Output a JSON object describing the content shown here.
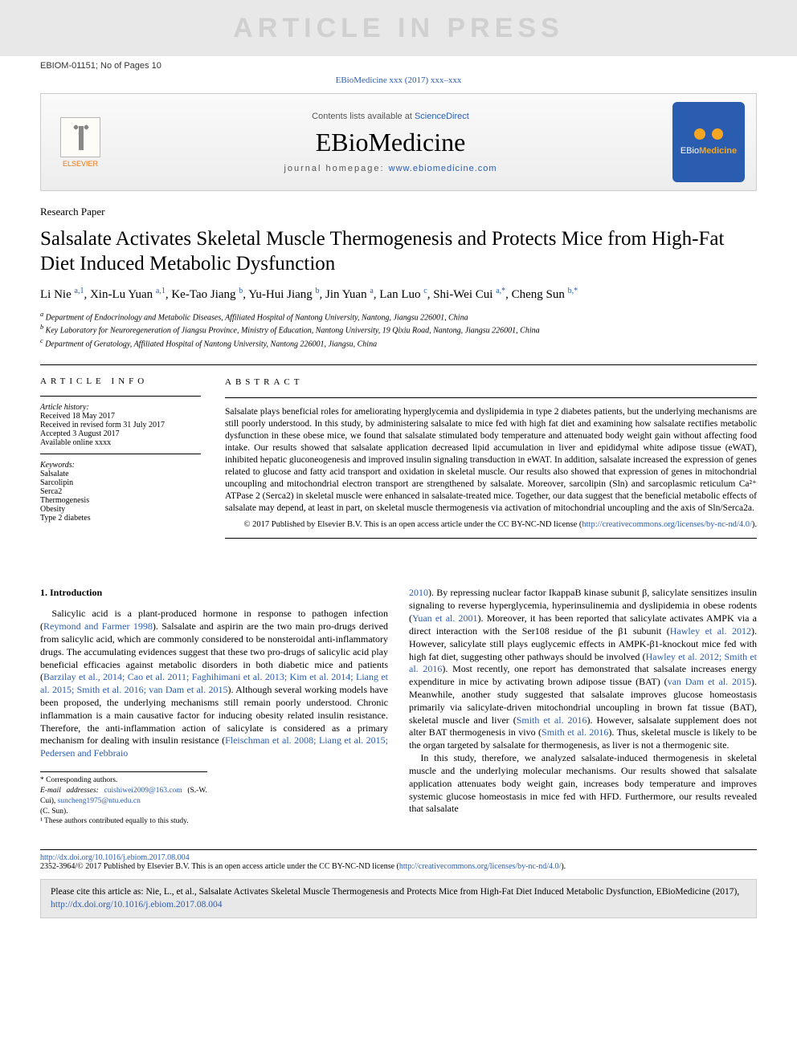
{
  "watermark": "ARTICLE IN PRESS",
  "article_id_line": "EBIOM-01151; No of Pages 10",
  "citation_top": "EBioMedicine xxx (2017) xxx–xxx",
  "masthead": {
    "contents_prefix": "Contents lists available at ",
    "contents_link": "ScienceDirect",
    "journal": "EBioMedicine",
    "homepage_prefix": "journal homepage: ",
    "homepage_url": "www.ebiomedicine.com",
    "elsevier_label": "ELSEVIER",
    "badge_text_a": "EBio",
    "badge_text_b": "Medicine",
    "badge_bg": "#2a5db0",
    "badge_accent": "#f5a623"
  },
  "article_type": "Research Paper",
  "title": "Salsalate Activates Skeletal Muscle Thermogenesis and Protects Mice from High-Fat Diet Induced Metabolic Dysfunction",
  "authors_html": "Li Nie <sup>a,1</sup>, Xin-Lu Yuan <sup>a,1</sup>, Ke-Tao Jiang <sup>b</sup>, Yu-Hui Jiang <sup>b</sup>, Jin Yuan <sup>a</sup>, Lan Luo <sup>c</sup>, Shi-Wei Cui <sup>a,*</sup>, Cheng Sun <sup>b,*</sup>",
  "affiliations": {
    "a": "Department of Endocrinology and Metabolic Diseases, Affiliated Hospital of Nantong University, Nantong, Jiangsu 226001, China",
    "b": "Key Laboratory for Neuroregeneration of Jiangsu Province, Ministry of Education, Nantong University, 19 Qixiu Road, Nantong, Jiangsu 226001, China",
    "c": "Department of Geratology, Affiliated Hospital of Nantong University, Nantong 226001, Jiangsu, China"
  },
  "info": {
    "heading": "ARTICLE INFO",
    "history_label": "Article history:",
    "received": "Received 18 May 2017",
    "revised": "Received in revised form 31 July 2017",
    "accepted": "Accepted 3 August 2017",
    "online": "Available online xxxx",
    "kw_label": "Keywords:",
    "keywords": [
      "Salsalate",
      "Sarcolipin",
      "Serca2",
      "Thermogenesis",
      "Obesity",
      "Type 2 diabetes"
    ]
  },
  "abstract": {
    "heading": "ABSTRACT",
    "text": "Salsalate plays beneficial roles for ameliorating hyperglycemia and dyslipidemia in type 2 diabetes patients, but the underlying mechanisms are still poorly understood. In this study, by administering salsalate to mice fed with high fat diet and examining how salsalate rectifies metabolic dysfunction in these obese mice, we found that salsalate stimulated body temperature and attenuated body weight gain without affecting food intake. Our results showed that salsalate application decreased lipid accumulation in liver and epididymal white adipose tissue (eWAT), inhibited hepatic gluconeogenesis and improved insulin signaling transduction in eWAT. In addition, salsalate increased the expression of genes related to glucose and fatty acid transport and oxidation in skeletal muscle. Our results also showed that expression of genes in mitochondrial uncoupling and mitochondrial electron transport are strengthened by salsalate. Moreover, sarcolipin (Sln) and sarcoplasmic reticulum Ca²⁺ ATPase 2 (Serca2) in skeletal muscle were enhanced in salsalate-treated mice. Together, our data suggest that the beneficial metabolic effects of salsalate may depend, at least in part, on skeletal muscle thermogenesis via activation of mitochondrial uncoupling and the axis of Sln/Serca2a.",
    "copyright_line": "© 2017 Published by Elsevier B.V. This is an open access article under the CC BY-NC-ND license (",
    "copyright_url_text": "http://creativecommons.org/licenses/by-nc-nd/4.0/",
    "copyright_close": ")."
  },
  "intro": {
    "heading": "1. Introduction",
    "col1_p1_a": "Salicylic acid is a plant-produced hormone in response to pathogen infection (",
    "col1_p1_ref1": "Reymond and Farmer 1998",
    "col1_p1_b": "). Salsalate and aspirin are the two main pro-drugs derived from salicylic acid, which are commonly considered to be nonsteroidal anti-inflammatory drugs. The accumulating evidences suggest that these two pro-drugs of salicylic acid play beneficial efficacies against metabolic disorders in both diabetic mice and patients (",
    "col1_p1_ref2": "Barzilay et al., 2014; Cao et al. 2011; Faghihimani et al. 2013; Kim et al. 2014; Liang et al. 2015; Smith et al. 2016; van Dam et al. 2015",
    "col1_p1_c": "). Although several working models have been proposed, the underlying mechanisms still remain poorly understood. Chronic inflammation is a main causative factor for inducing obesity related insulin resistance. Therefore, the anti-inflammation action of salicylate is considered as a primary mechanism for dealing with insulin resistance (",
    "col1_p1_ref3": "Fleischman et al. 2008; Liang et al. 2015; Pedersen and Febbraio",
    "col2_p1_ref1": "2010",
    "col2_p1_a": "). By repressing nuclear factor IkappaB kinase subunit β, salicylate sensitizes insulin signaling to reverse hyperglycemia, hyperinsulinemia and dyslipidemia in obese rodents (",
    "col2_p1_ref2": "Yuan et al. 2001",
    "col2_p1_b": "). Moreover, it has been reported that salicylate activates AMPK via a direct interaction with the Ser108 residue of the β1 subunit (",
    "col2_p1_ref3": "Hawley et al. 2012",
    "col2_p1_c": "). However, salicylate still plays euglycemic effects in AMPK-β1-knockout mice fed with high fat diet, suggesting other pathways should be involved (",
    "col2_p1_ref4": "Hawley et al. 2012; Smith et al. 2016",
    "col2_p1_d": "). Most recently, one report has demonstrated that salsalate increases energy expenditure in mice by activating brown adipose tissue (BAT) (",
    "col2_p1_ref5": "van Dam et al. 2015",
    "col2_p1_e": "). Meanwhile, another study suggested that salsalate improves glucose homeostasis primarily via salicylate-driven mitochondrial uncoupling in brown fat tissue (BAT), skeletal muscle and liver (",
    "col2_p1_ref6": "Smith et al. 2016",
    "col2_p1_f": "). However, salsalate supplement does not alter BAT thermogenesis in vivo (",
    "col2_p1_ref7": "Smith et al. 2016",
    "col2_p1_g": "). Thus, skeletal muscle is likely to be the organ targeted by salsalate for thermogenesis, as liver is not a thermogenic site.",
    "col2_p2": "In this study, therefore, we analyzed salsalate-induced thermogenesis in skeletal muscle and the underlying molecular mechanisms. Our results showed that salsalate application attenuates body weight gain, increases body temperature and improves systemic glucose homeostasis in mice fed with HFD. Furthermore, our results revealed that salsalate"
  },
  "footnotes": {
    "corr": "* Corresponding authors.",
    "email_label": "E-mail addresses: ",
    "email1": "cuishiwei2009@163.com",
    "email1_who": " (S.-W. Cui), ",
    "email2": "suncheng1975@ntu.edu.cn",
    "email2_who": " (C. Sun).",
    "equal": "¹ These authors contributed equally to this study."
  },
  "doi": {
    "url": "http://dx.doi.org/10.1016/j.ebiom.2017.08.004",
    "issn_line_a": "2352-3964/© 2017 Published by Elsevier B.V. This is an open access article under the CC BY-NC-ND license (",
    "issn_url": "http://creativecommons.org/licenses/by-nc-nd/4.0/",
    "issn_line_b": ")."
  },
  "citebox": {
    "text_a": "Please cite this article as: Nie, L., et al., Salsalate Activates Skeletal Muscle Thermogenesis and Protects Mice from High-Fat Diet Induced Metabolic Dysfunction, EBioMedicine (2017), ",
    "url": "http://dx.doi.org/10.1016/j.ebiom.2017.08.004"
  },
  "colors": {
    "link": "#2a5db0",
    "watermark_bg": "#e8e8e8",
    "watermark_fg": "#d0d0d0",
    "masthead_border": "#cccccc"
  }
}
